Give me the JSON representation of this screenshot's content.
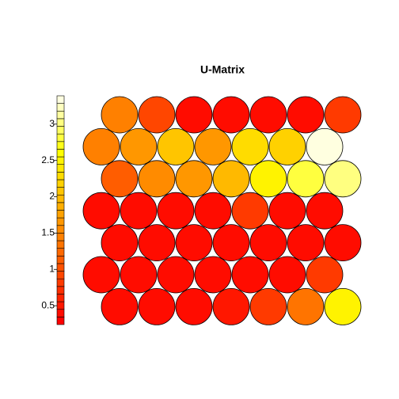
{
  "chart_data": {
    "type": "hexmap",
    "title": "U-Matrix",
    "values": [
      [
        1.4,
        0.9,
        0.4,
        0.4,
        0.4,
        0.4,
        0.8
      ],
      [
        1.5,
        1.7,
        2.1,
        1.7,
        2.3,
        2.2,
        3.3
      ],
      [
        1.1,
        1.6,
        1.7,
        2.0,
        2.5,
        2.8,
        3.0
      ],
      [
        0.4,
        0.35,
        0.4,
        0.4,
        0.8,
        0.4,
        0.4
      ],
      [
        0.4,
        0.35,
        0.4,
        0.4,
        0.4,
        0.35,
        0.4
      ],
      [
        0.4,
        0.4,
        0.4,
        0.4,
        0.4,
        0.4,
        0.8
      ],
      [
        0.4,
        0.4,
        0.4,
        0.5,
        0.8,
        1.3,
        2.5
      ]
    ],
    "zlim": [
      0.24,
      3.39
    ],
    "zticks": [
      0.5,
      1,
      1.5,
      2,
      2.5,
      3
    ],
    "palette": [
      "#FF0000",
      "#FF0C00",
      "#FF1700",
      "#FF2300",
      "#FF2E00",
      "#FF3A00",
      "#FF4600",
      "#FF5100",
      "#FF5D00",
      "#FF6800",
      "#FF7400",
      "#FF8000",
      "#FF8B00",
      "#FF9700",
      "#FFA200",
      "#FFAE00",
      "#FFB900",
      "#FFC500",
      "#FFD100",
      "#FFDC00",
      "#FFE800",
      "#FFF300",
      "#FFFF00",
      "#FFFF1A",
      "#FFFF3F",
      "#FFFF60",
      "#FFFF80",
      "#FFFFA0",
      "#FFFFC0",
      "#FFFFE0"
    ]
  }
}
